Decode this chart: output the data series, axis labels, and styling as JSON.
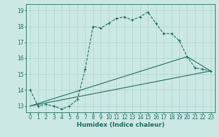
{
  "title": "",
  "xlabel": "Humidex (Indice chaleur)",
  "bg_color": "#cce8e4",
  "line_color": "#1a6b5e",
  "grid_color": "#a8d4ce",
  "xlim": [
    -0.5,
    23.5
  ],
  "ylim": [
    12.6,
    19.4
  ],
  "xticks": [
    0,
    1,
    2,
    3,
    4,
    5,
    6,
    7,
    8,
    9,
    10,
    11,
    12,
    13,
    14,
    15,
    16,
    17,
    18,
    19,
    20,
    21,
    22,
    23
  ],
  "yticks": [
    13,
    14,
    15,
    16,
    17,
    18,
    19
  ],
  "line1_x": [
    0,
    1,
    2,
    3,
    4,
    5,
    6,
    7,
    8,
    9,
    10,
    11,
    12,
    13,
    14,
    15,
    16,
    17,
    18,
    19,
    20,
    21,
    22,
    23
  ],
  "line1_y": [
    14.0,
    13.0,
    13.1,
    13.0,
    12.8,
    13.0,
    13.4,
    15.3,
    18.0,
    17.9,
    18.2,
    18.5,
    18.6,
    18.4,
    18.6,
    18.9,
    18.2,
    17.55,
    17.55,
    17.1,
    16.1,
    15.4,
    15.3,
    15.2
  ],
  "line2_x": [
    0,
    23
  ],
  "line2_y": [
    13.0,
    15.2
  ],
  "line3_x": [
    0,
    20,
    23
  ],
  "line3_y": [
    13.0,
    16.1,
    15.2
  ],
  "xlabel_fontsize": 6.5,
  "xlabel_color": "#1a6b5e",
  "tick_fontsize": 5.5,
  "line_width": 0.8,
  "marker_size": 3.0
}
